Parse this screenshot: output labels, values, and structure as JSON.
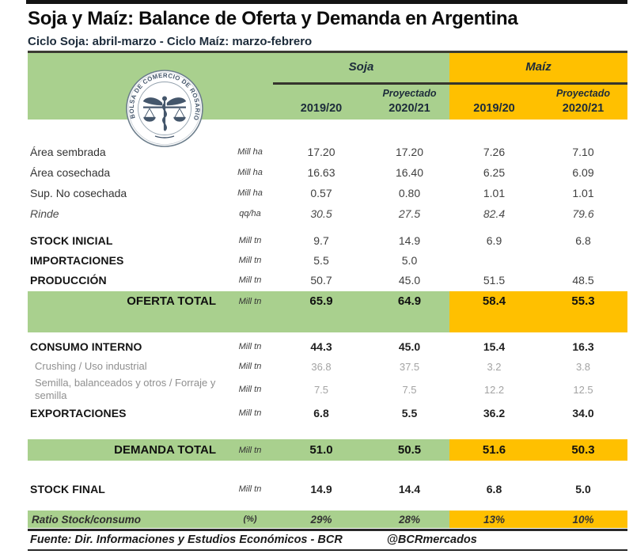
{
  "page": {
    "title": "Soja y Maíz: Balance de Oferta y Demanda en Argentina",
    "subtitle": "Ciclo Soja: abril-marzo - Ciclo Maíz: marzo-febrero"
  },
  "logo": {
    "circular_text": "BOLSA DE COMERCIO DE ROSARIO"
  },
  "colors": {
    "soja_green": "#a9d08e",
    "maiz_orange": "#ffc000",
    "header_text": "#1c2b3a",
    "rule_dark": "#3b3b33"
  },
  "table": {
    "group_headers": [
      {
        "label": "Soja"
      },
      {
        "label": "Maíz"
      }
    ],
    "proyectado_label": "Proyectado",
    "year_columns": [
      "2019/20",
      "2020/21",
      "2019/20",
      "2020/21"
    ],
    "sections": [
      {
        "rows": [
          {
            "label": "Área sembrada",
            "unit": "Mill ha",
            "values": [
              "17.20",
              "17.20",
              "7.26",
              "7.10"
            ],
            "style": "plain"
          },
          {
            "label": "Área cosechada",
            "unit": "Mill ha",
            "values": [
              "16.63",
              "16.40",
              "6.25",
              "6.09"
            ],
            "style": "plain"
          },
          {
            "label": "Sup. No cosechada",
            "unit": "Mill ha",
            "values": [
              "0.57",
              "0.80",
              "1.01",
              "1.01"
            ],
            "style": "plain"
          },
          {
            "label": "Rinde",
            "unit": "qq/ha",
            "values": [
              "30.5",
              "27.5",
              "82.4",
              "79.6"
            ],
            "style": "rinde"
          }
        ]
      },
      {
        "rows": [
          {
            "label": "STOCK INICIAL",
            "unit": "Mill tn",
            "values": [
              "9.7",
              "14.9",
              "6.9",
              "6.8"
            ],
            "style": "caps"
          },
          {
            "label": "IMPORTACIONES",
            "unit": "Mill tn",
            "values": [
              "5.5",
              "5.0",
              "",
              ""
            ],
            "style": "caps"
          },
          {
            "label": "PRODUCCIÓN",
            "unit": "Mill tn",
            "values": [
              "50.7",
              "45.0",
              "51.5",
              "48.5"
            ],
            "style": "caps"
          },
          {
            "label": "OFERTA TOTAL",
            "unit": "Mill tn",
            "values": [
              "65.9",
              "64.9",
              "58.4",
              "55.3"
            ],
            "style": "total-tall"
          }
        ]
      },
      {
        "rows": [
          {
            "label": "CONSUMO INTERNO",
            "unit": "Mill tn",
            "values": [
              "44.3",
              "45.0",
              "15.4",
              "16.3"
            ],
            "style": "caps-bold"
          },
          {
            "label": "Crushing / Uso industrial",
            "unit": "Mill tn",
            "values": [
              "36.8",
              "37.5",
              "3.2",
              "3.8"
            ],
            "style": "sub"
          },
          {
            "label": "Semilla, balanceados y otros / Forraje y semilla",
            "unit": "Mill tn",
            "values": [
              "7.5",
              "7.5",
              "12.2",
              "12.5"
            ],
            "style": "sub"
          },
          {
            "label": "EXPORTACIONES",
            "unit": "Mill tn",
            "values": [
              "6.8",
              "5.5",
              "36.2",
              "34.0"
            ],
            "style": "caps-bold"
          }
        ]
      },
      {
        "rows": [
          {
            "label": "DEMANDA TOTAL",
            "unit": "Mill tn",
            "values": [
              "51.0",
              "50.5",
              "51.6",
              "50.3"
            ],
            "style": "total"
          }
        ]
      },
      {
        "rows": [
          {
            "label": "STOCK FINAL",
            "unit": "Mill tn",
            "values": [
              "14.9",
              "14.4",
              "6.8",
              "5.0"
            ],
            "style": "caps-bold"
          }
        ]
      },
      {
        "rows": [
          {
            "label": "Ratio Stock/consumo",
            "unit": "(%)",
            "values": [
              "29%",
              "28%",
              "13%",
              "10%"
            ],
            "style": "ratio"
          }
        ]
      }
    ]
  },
  "footer": {
    "source": "Fuente: Dir. Informaciones y Estudios Económicos - BCR",
    "handle": "@BCRmercados"
  }
}
